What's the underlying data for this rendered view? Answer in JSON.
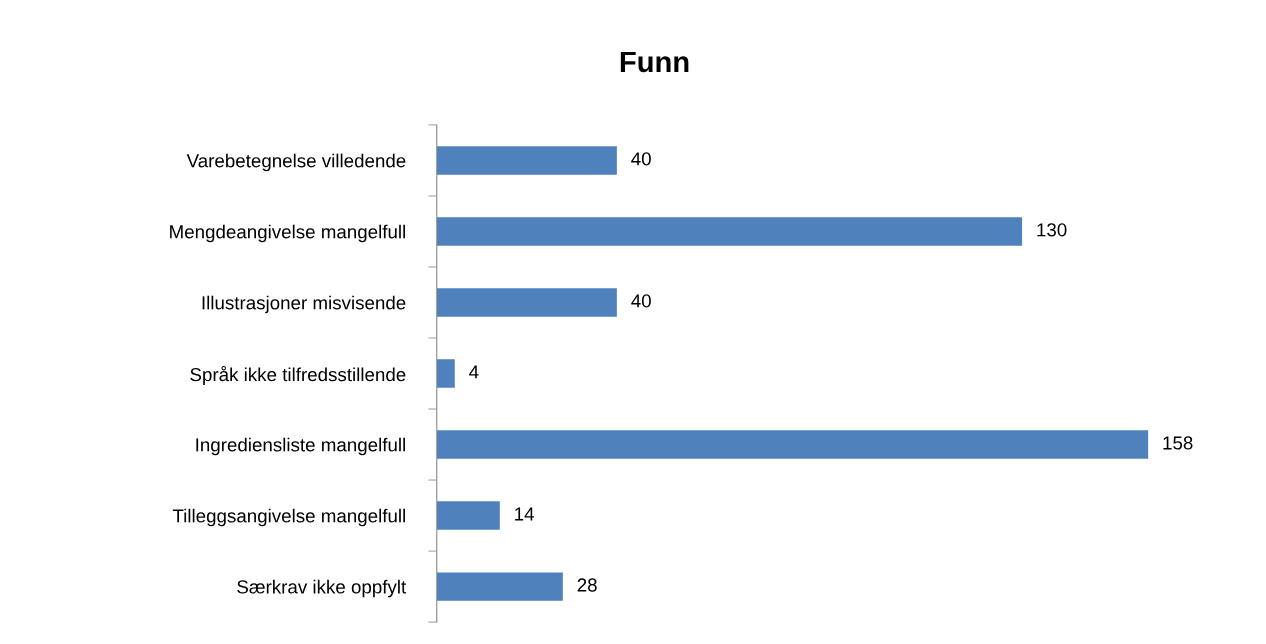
{
  "chart_data": {
    "type": "bar",
    "orientation": "horizontal",
    "title": "Funn",
    "categories": [
      "Varebetegnelse villedende",
      "Mengdeangivelse mangelfull",
      "Illustrasjoner misvisende",
      "Språk ikke tilfredsstillende",
      "Ingrediensliste mangelfull",
      "Tilleggsangivelse mangelfull",
      "Særkrav ikke oppfylt"
    ],
    "values": [
      40,
      130,
      40,
      4,
      158,
      14,
      28
    ],
    "color": "#4f81bd",
    "tick_labels": "y",
    "data_labels": true
  }
}
